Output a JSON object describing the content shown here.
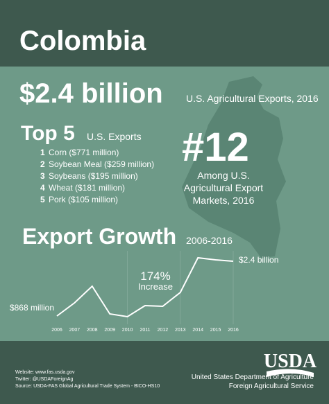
{
  "header": {
    "title": "Colombia"
  },
  "exports": {
    "amount": "$2.4 billion",
    "caption": "U.S. Agricultural Exports, 2016"
  },
  "top5": {
    "title": "Top 5",
    "subtitle": "U.S. Exports",
    "items": [
      {
        "rank": 1,
        "text": "Corn ($771 million)"
      },
      {
        "rank": 2,
        "text": "Soybean Meal ($259 million)"
      },
      {
        "rank": 3,
        "text": "Soybeans ($195 million)"
      },
      {
        "rank": 4,
        "text": "Wheat ($181 million)"
      },
      {
        "rank": 5,
        "text": "Pork ($105 million)"
      }
    ]
  },
  "rank": {
    "value": "#12",
    "lines": [
      "Among U.S.",
      "Agricultural Export",
      "Markets, 2016"
    ]
  },
  "chart_data": {
    "type": "line",
    "title": "Export Growth",
    "subtitle": "2006-2016",
    "x": [
      2006,
      2007,
      2008,
      2009,
      2010,
      2011,
      2012,
      2013,
      2014,
      2015,
      2016
    ],
    "values": [
      868,
      1236,
      1702,
      926,
      849,
      1159,
      1140,
      1528,
      2497,
      2439,
      2400
    ],
    "value_labels": [
      "$868 million",
      null,
      null,
      null,
      null,
      null,
      null,
      null,
      null,
      null,
      "$2.4 billion"
    ],
    "color": "#ffffff",
    "annotations": [
      "174%",
      "Increase"
    ]
  },
  "footer": {
    "website": "Website: www.fas.usda.gov",
    "twitter": "Twitter: @USDAForeignAg",
    "source": "Source: USDA-FAS Global Agricultural Trade System - BICO-HS10",
    "logo": "USDA",
    "agency_lines": [
      "United States Department of Agriculture",
      "Foreign Agricultural Service"
    ]
  }
}
